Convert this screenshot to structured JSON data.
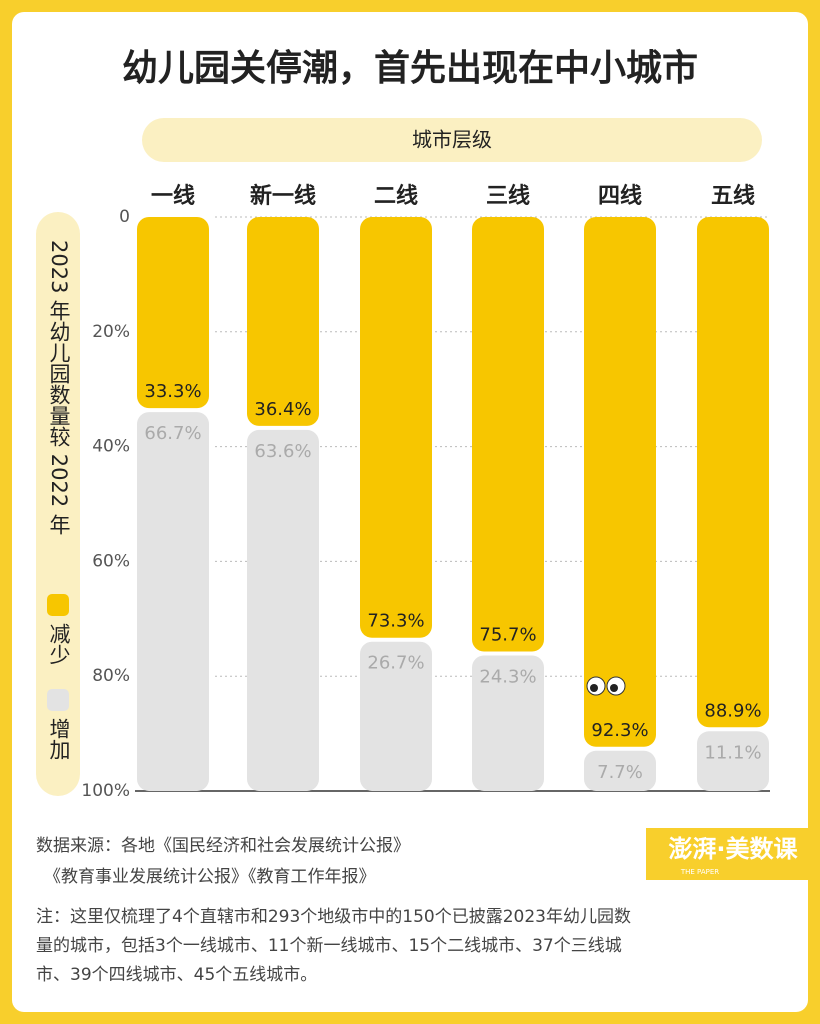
{
  "chart_data": {
    "type": "stacked-bar",
    "title": "幼儿园关停潮，首先出现在中小城市",
    "x_label": "城市层级",
    "y_label": "2023 年幼儿园数量较 2022 年",
    "categories": [
      "一线",
      "新一线",
      "二线",
      "三线",
      "四线",
      "五线"
    ],
    "series": [
      {
        "name": "减少",
        "color": "#f7c600",
        "values": [
          33.3,
          36.4,
          73.3,
          75.7,
          92.3,
          88.9
        ],
        "value_labels": [
          "33.3%",
          "36.4%",
          "73.3%",
          "75.7%",
          "92.3%",
          "88.9%"
        ]
      },
      {
        "name": "增加",
        "color": "#e3e3e3",
        "values": [
          66.7,
          63.6,
          26.7,
          24.3,
          7.7,
          11.1
        ],
        "value_labels": [
          "66.7%",
          "63.6%",
          "26.7%",
          "24.3%",
          "7.7%",
          "11.1%"
        ]
      }
    ],
    "ylim": [
      0,
      100
    ],
    "y_inverted": true,
    "yticks": [
      0,
      {
        "value": 20,
        "label": "20%"
      },
      {
        "value": 40,
        "label": "40%"
      },
      {
        "value": 60,
        "label": "60%"
      },
      {
        "value": 80,
        "label": "80%"
      },
      {
        "value": 100,
        "label": "100%"
      }
    ],
    "grid": true,
    "source": [
      "数据来源：各地《国民经济和社会发展统计公报》",
      "《教育事业发展统计公报》《教育工作年报》"
    ],
    "note": [
      "注：这里仅梳理了4个直辖市和293个地级市中的150个已披露2023年幼儿园数",
      "量的城市，包括3个一线城市、11个新一线城市、15个二线城市、37个三线城",
      "市、39个四线城市、45个五线城市。"
    ],
    "logo": "澎湃·美数课",
    "logo_sub": "THE PAPER"
  }
}
